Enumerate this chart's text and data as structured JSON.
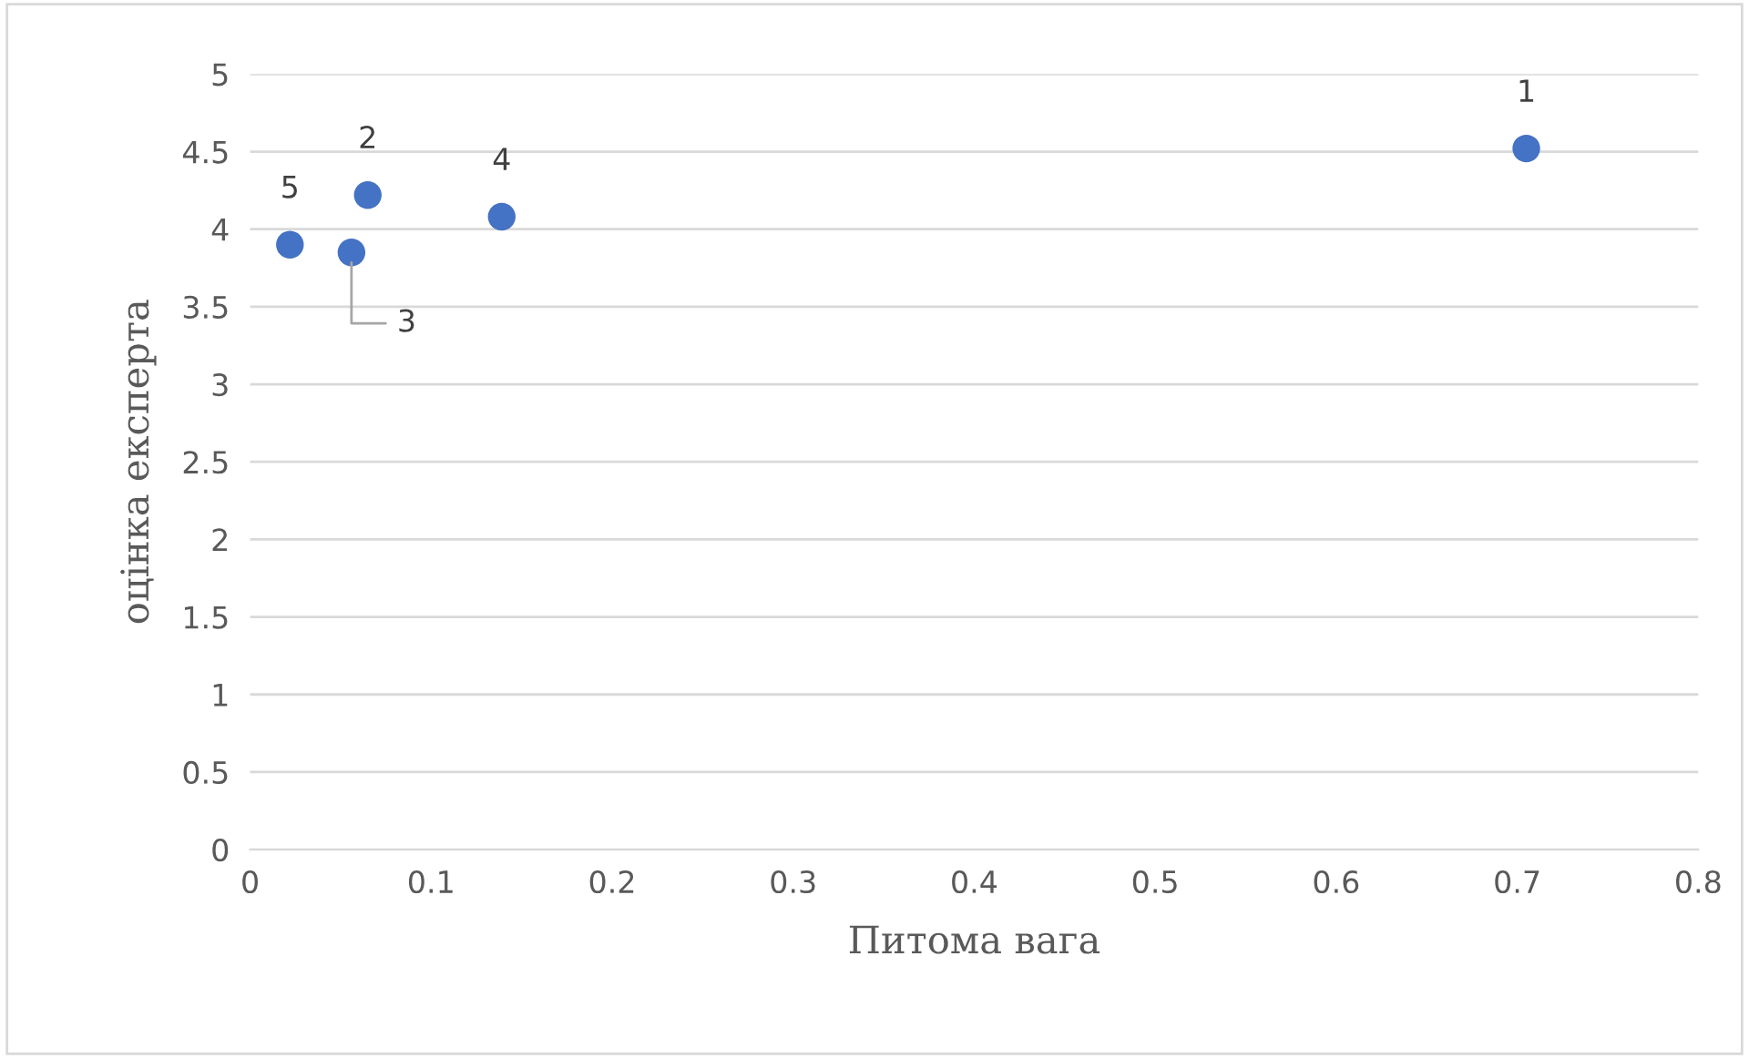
{
  "chart_data": {
    "type": "scatter",
    "xlabel": "Питома вага",
    "ylabel": "оцінка експерта",
    "x": [
      0.705,
      0.065,
      0.056,
      0.139,
      0.022
    ],
    "series": [
      {
        "color": "#4472c4",
        "values": [
          4.52,
          4.22,
          3.85,
          4.08,
          3.9
        ]
      }
    ],
    "xlim": [
      0,
      0.8
    ],
    "xticks": [
      0,
      0.1,
      0.2,
      0.3,
      0.4,
      0.5,
      0.6,
      0.7,
      0.8
    ],
    "ylim": [
      0,
      5
    ],
    "yticks": [
      0,
      0.5,
      1,
      1.5,
      2,
      2.5,
      3,
      3.5,
      4,
      4.5,
      5
    ],
    "grid": "y",
    "marker": "circle",
    "legend": false,
    "annotations": [
      {
        "text": "1",
        "x": 0.705,
        "y": 4.52
      },
      {
        "text": "2",
        "x": 0.065,
        "y": 4.22
      },
      {
        "text": "3",
        "x": 0.056,
        "y": 3.85
      },
      {
        "text": "4",
        "x": 0.139,
        "y": 4.08
      },
      {
        "text": "5",
        "x": 0.022,
        "y": 3.9
      }
    ]
  }
}
